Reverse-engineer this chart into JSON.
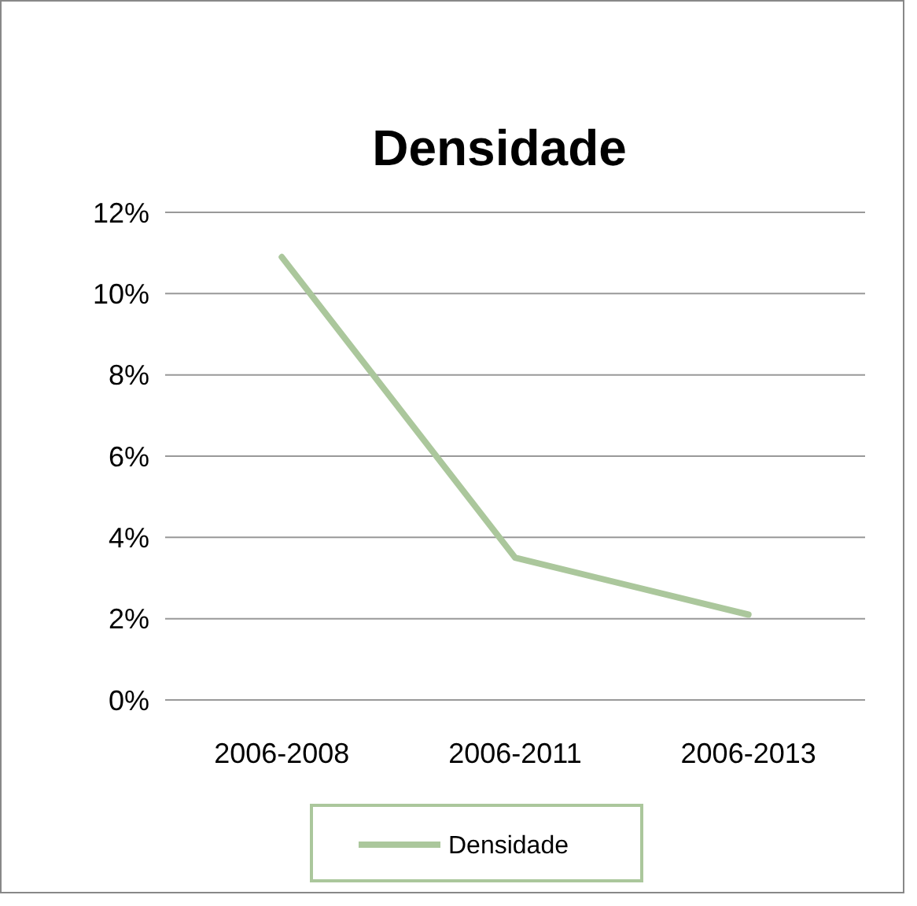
{
  "chart_data": {
    "type": "line",
    "title": "Densidade",
    "categories": [
      "2006-2008",
      "2006-2011",
      "2006-2013"
    ],
    "series": [
      {
        "name": "Densidade",
        "color": "#abc79c",
        "values": [
          10.9,
          3.5,
          2.1
        ]
      }
    ],
    "ylim": [
      0,
      12
    ],
    "yticks": [
      {
        "value": 0,
        "label": "0%"
      },
      {
        "value": 2,
        "label": "2%"
      },
      {
        "value": 4,
        "label": "4%"
      },
      {
        "value": 6,
        "label": "6%"
      },
      {
        "value": 8,
        "label": "8%"
      },
      {
        "value": 10,
        "label": "10%"
      },
      {
        "value": 12,
        "label": "12%"
      }
    ],
    "grid": "y",
    "legend": "bottom",
    "marker": "none",
    "line_style": "solid"
  }
}
